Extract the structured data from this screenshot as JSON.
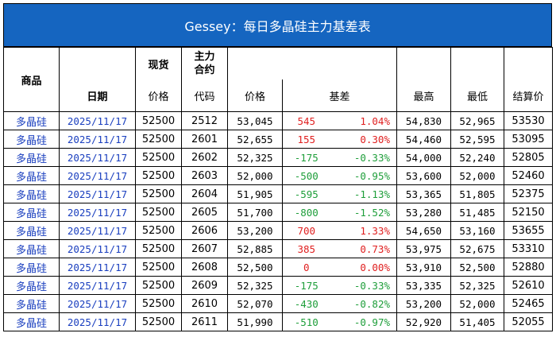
{
  "title": "Gessey：每日多晶硅主力基差表",
  "headers": {
    "product": "商品",
    "date": "日期",
    "spot_group": "现货",
    "main_contract_group": "主力\n合约",
    "spot_price": "价格",
    "code": "代码",
    "futures_price": "价格",
    "basis": "基差",
    "high": "最高",
    "low": "最低",
    "settle": "结算价"
  },
  "rows": [
    {
      "product": "多晶硅",
      "date": "2025/11/17",
      "spot": "52500",
      "code": "2512",
      "price": "53,045",
      "basis": "545",
      "basis_pct": "1.04%",
      "high": "54,830",
      "low": "52,965",
      "settle": "53530",
      "sign": "pos"
    },
    {
      "product": "多晶硅",
      "date": "2025/11/17",
      "spot": "52500",
      "code": "2601",
      "price": "52,655",
      "basis": "155",
      "basis_pct": "0.30%",
      "high": "54,460",
      "low": "52,595",
      "settle": "53095",
      "sign": "pos"
    },
    {
      "product": "多晶硅",
      "date": "2025/11/17",
      "spot": "52500",
      "code": "2602",
      "price": "52,325",
      "basis": "-175",
      "basis_pct": "-0.33%",
      "high": "54,000",
      "low": "52,240",
      "settle": "52805",
      "sign": "neg"
    },
    {
      "product": "多晶硅",
      "date": "2025/11/17",
      "spot": "52500",
      "code": "2603",
      "price": "52,000",
      "basis": "-500",
      "basis_pct": "-0.95%",
      "high": "53,600",
      "low": "52,000",
      "settle": "52460",
      "sign": "neg"
    },
    {
      "product": "多晶硅",
      "date": "2025/11/17",
      "spot": "52500",
      "code": "2604",
      "price": "51,905",
      "basis": "-595",
      "basis_pct": "-1.13%",
      "high": "53,365",
      "low": "51,805",
      "settle": "52375",
      "sign": "neg"
    },
    {
      "product": "多晶硅",
      "date": "2025/11/17",
      "spot": "52500",
      "code": "2605",
      "price": "51,700",
      "basis": "-800",
      "basis_pct": "-1.52%",
      "high": "53,280",
      "low": "51,485",
      "settle": "52150",
      "sign": "neg"
    },
    {
      "product": "多晶硅",
      "date": "2025/11/17",
      "spot": "52500",
      "code": "2606",
      "price": "53,200",
      "basis": "700",
      "basis_pct": "1.33%",
      "high": "54,650",
      "low": "53,160",
      "settle": "53655",
      "sign": "pos"
    },
    {
      "product": "多晶硅",
      "date": "2025/11/17",
      "spot": "52500",
      "code": "2607",
      "price": "52,885",
      "basis": "385",
      "basis_pct": "0.73%",
      "high": "53,975",
      "low": "52,675",
      "settle": "53310",
      "sign": "pos"
    },
    {
      "product": "多晶硅",
      "date": "2025/11/17",
      "spot": "52500",
      "code": "2608",
      "price": "52,500",
      "basis": "0",
      "basis_pct": "0.00%",
      "high": "53,910",
      "low": "52,500",
      "settle": "52880",
      "sign": "pos"
    },
    {
      "product": "多晶硅",
      "date": "2025/11/17",
      "spot": "52500",
      "code": "2609",
      "price": "52,325",
      "basis": "-175",
      "basis_pct": "-0.33%",
      "high": "53,335",
      "low": "52,325",
      "settle": "52610",
      "sign": "neg"
    },
    {
      "product": "多晶硅",
      "date": "2025/11/17",
      "spot": "52500",
      "code": "2610",
      "price": "52,070",
      "basis": "-430",
      "basis_pct": "-0.82%",
      "high": "53,200",
      "low": "52,000",
      "settle": "52465",
      "sign": "neg"
    },
    {
      "product": "多晶硅",
      "date": "2025/11/17",
      "spot": "52500",
      "code": "2611",
      "price": "51,990",
      "basis": "-510",
      "basis_pct": "-0.97%",
      "high": "52,920",
      "low": "51,405",
      "settle": "52055",
      "sign": "neg"
    }
  ],
  "colors": {
    "title_bg": "#1565c0",
    "positive": "#e02020",
    "negative": "#1e9e3a",
    "link_text": "#1a3fbf"
  }
}
